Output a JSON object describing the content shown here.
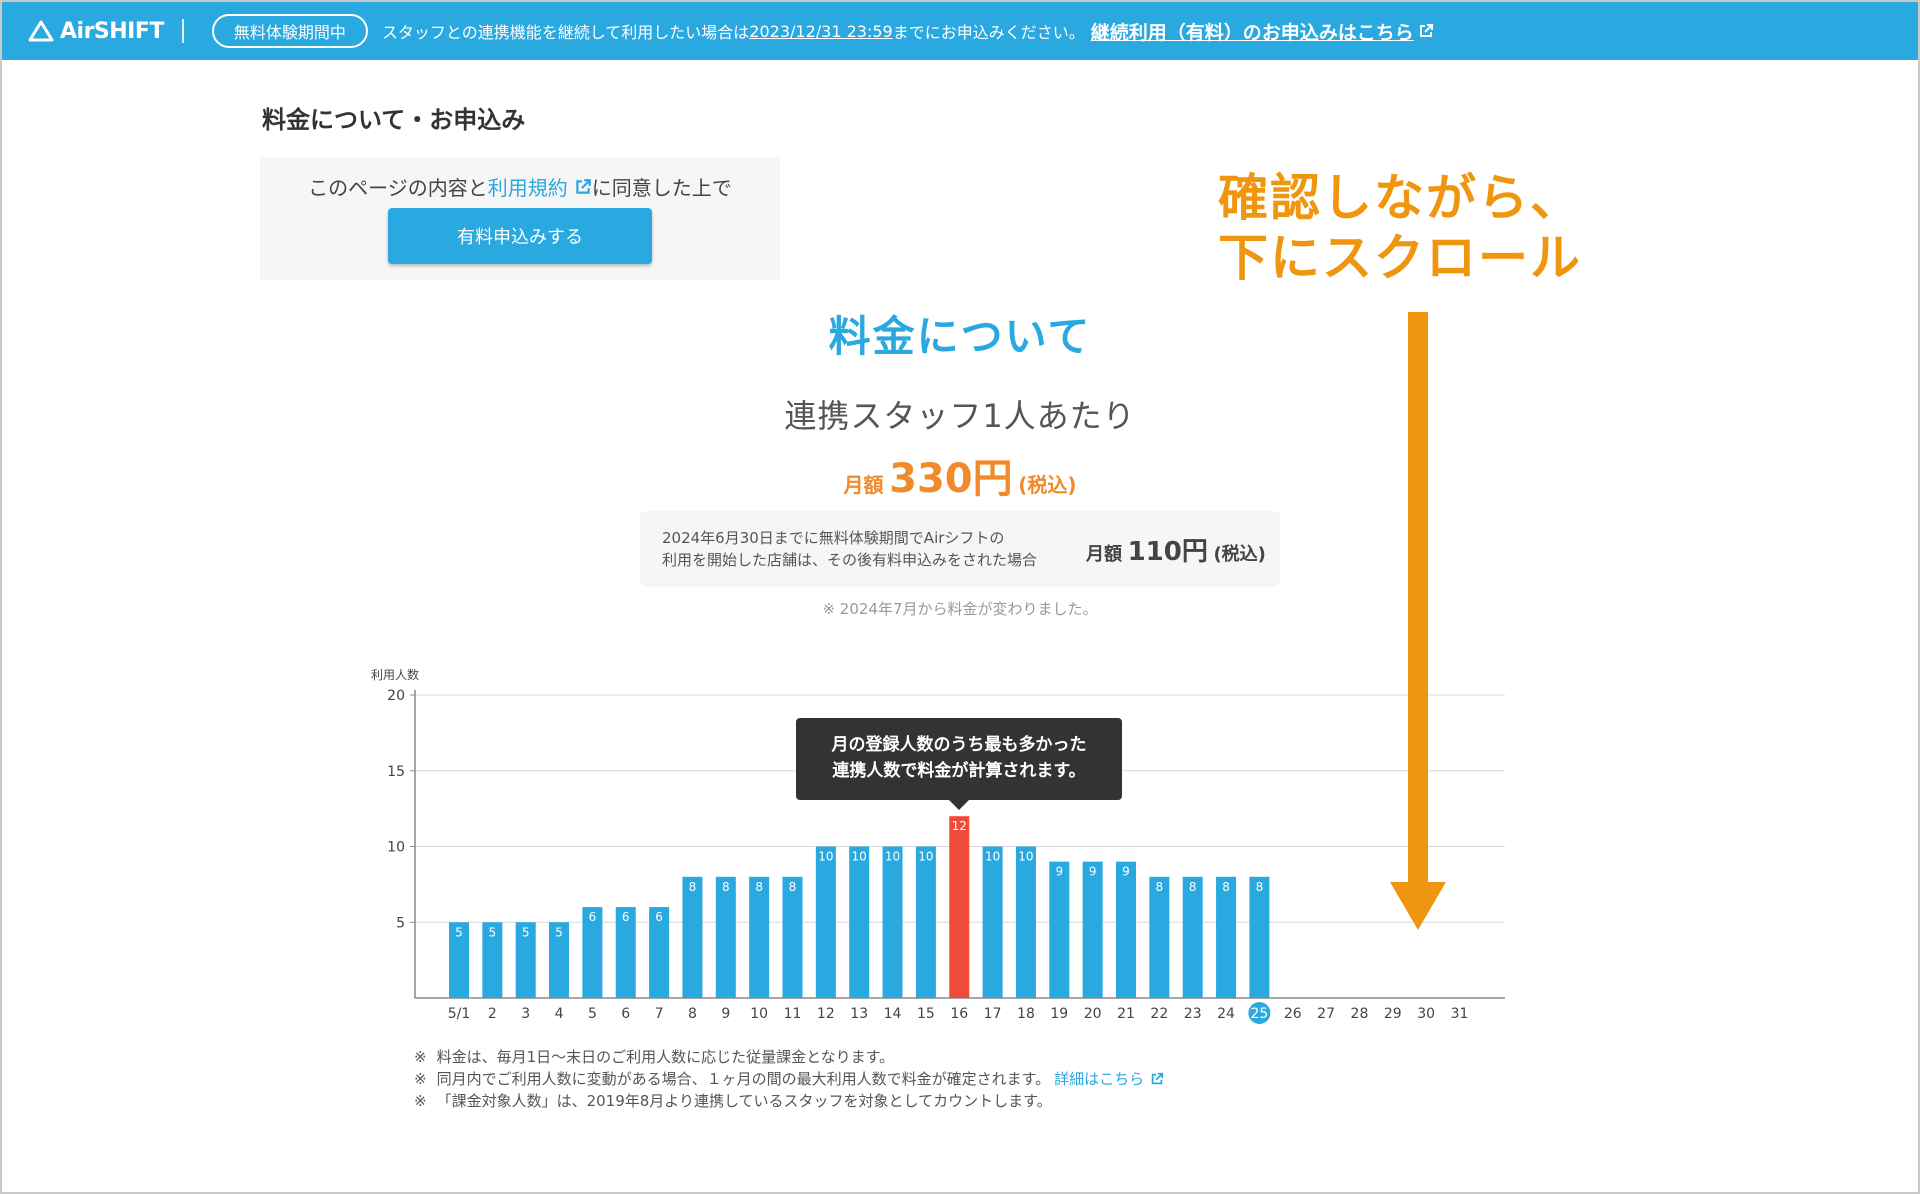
{
  "topbar": {
    "logo": "AirSHIFT",
    "trial_badge": "無料体験期間中",
    "notice_before": "スタッフとの連携機能を継続して利用したい場合は",
    "notice_date": "2023/12/31 23:59",
    "notice_after": "までにお申込みください。",
    "notice_link": "継続利用（有料）のお申込みはこちら"
  },
  "page_title": "料金について・お申込み",
  "agree": {
    "text_before": "このページの内容と",
    "terms_link": "利用規約",
    "text_after": "に同意した上で",
    "apply_button": "有料申込みする"
  },
  "pricing": {
    "section_title": "料金について",
    "per_staff": "連携スタッフ1人あたり",
    "monthly_label": "月額",
    "price": "330円",
    "tax": "(税込)",
    "discount_text_line1": "2024年6月30日までに無料体験期間でAirシフトの",
    "discount_text_line2": "利用を開始した店舗は、その後有料申込みをされた場合",
    "discount_monthly": "月額",
    "discount_price": "110円",
    "discount_tax": "(税込)",
    "change_note": "※  2024年7月から料金が変わりました。"
  },
  "chart_tooltip": {
    "line1": "月の登録人数のうち最も多かった",
    "line2": "連携人数で料金が計算されます。"
  },
  "chart_data": {
    "type": "bar",
    "ylabel": "利用人数",
    "ylim": [
      0,
      20
    ],
    "yticks": [
      5,
      10,
      15,
      20
    ],
    "categories": [
      "5/1",
      "2",
      "3",
      "4",
      "5",
      "6",
      "7",
      "8",
      "9",
      "10",
      "11",
      "12",
      "13",
      "14",
      "15",
      "16",
      "17",
      "18",
      "19",
      "20",
      "21",
      "22",
      "23",
      "24",
      "25",
      "26",
      "27",
      "28",
      "29",
      "30",
      "31"
    ],
    "values": [
      5,
      5,
      5,
      5,
      6,
      6,
      6,
      8,
      8,
      8,
      8,
      10,
      10,
      10,
      10,
      12,
      10,
      10,
      9,
      9,
      9,
      8,
      8,
      8,
      8,
      null,
      null,
      null,
      null,
      null,
      null
    ],
    "highlight_index": 15,
    "today_index": 24,
    "bar_color": "#2aa8e0",
    "highlight_color": "#ef4b3a",
    "grid": true
  },
  "footnotes": {
    "mark": "※",
    "note1": "料金は、毎月1日〜末日のご利用人数に応じた従量課金となります。",
    "note2": "同月内でご利用人数に変動がある場合、１ヶ月の間の最大利用人数で料金が確定されます。",
    "note2_link": "詳細はこちら",
    "note3": "「課金対象人数」は、2019年8月より連携しているスタッフを対象としてカウントします。"
  },
  "annotation": {
    "line1": "確認しながら、",
    "line2": "下にスクロール",
    "color": "#f0950f"
  },
  "colors": {
    "brand": "#2aa8e0",
    "accent_orange": "#f08a2a"
  }
}
